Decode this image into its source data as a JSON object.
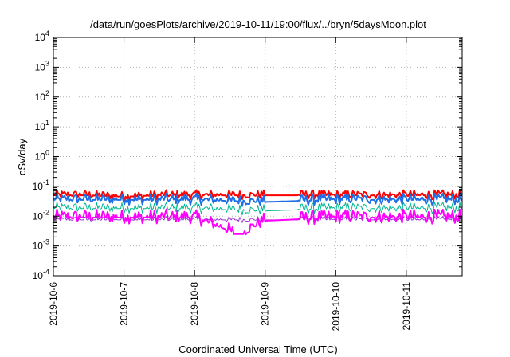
{
  "chart_data": {
    "type": "line",
    "title": "/data/run/goesPlots/archive/2019-10-11/19:00/flux/../bryn/5daysMoon.plot",
    "xlabel": "Coordinated Universal Time (UTC)",
    "ylabel": "cSv/day",
    "yscale": "log",
    "ylim": [
      0.0001,
      10000
    ],
    "xlim": [
      "2019-10-06T00:00",
      "2019-10-11T19:00"
    ],
    "x_ticks": [
      "2019-10-6",
      "2019-10-7",
      "2019-10-8",
      "2019-10-9",
      "2019-10-10",
      "2019-10-11"
    ],
    "y_ticks": [
      {
        "base": "10",
        "exp": "4"
      },
      {
        "base": "10",
        "exp": "3"
      },
      {
        "base": "10",
        "exp": "2"
      },
      {
        "base": "10",
        "exp": "1"
      },
      {
        "base": "10",
        "exp": "0"
      },
      {
        "base": "10",
        "exp": "-1"
      },
      {
        "base": "10",
        "exp": "-2"
      },
      {
        "base": "10",
        "exp": "-3"
      },
      {
        "base": "10",
        "exp": "-4"
      }
    ],
    "grid": true,
    "legend": "none",
    "gap": [
      "2019-10-09T00:00",
      "2019-10-09T10:00"
    ],
    "series": [
      {
        "color": "#ff0000",
        "baseline": 0.05,
        "gap_value": 0.05,
        "width": 2,
        "x": [
          "2019-10-06T00:00",
          "2019-10-06T12:00",
          "2019-10-07T00:00",
          "2019-10-07T12:00",
          "2019-10-08T00:00",
          "2019-10-08T12:00",
          "2019-10-09T00:00",
          "2019-10-09T12:00",
          "2019-10-10T00:00",
          "2019-10-10T12:00",
          "2019-10-11T00:00",
          "2019-10-11T12:00",
          "2019-10-11T19:00"
        ],
        "y": [
          0.05,
          0.05,
          0.045,
          0.05,
          0.05,
          0.05,
          0.05,
          0.05,
          0.05,
          0.05,
          0.05,
          0.05,
          0.05
        ]
      },
      {
        "color": "#9b30d0",
        "baseline": 0.0075,
        "gap_value": 0.0075,
        "width": 1,
        "x": [
          "2019-10-06T00:00",
          "2019-10-07T00:00",
          "2019-10-08T00:00",
          "2019-10-09T00:00",
          "2019-10-10T00:00",
          "2019-10-11T00:00",
          "2019-10-11T19:00"
        ],
        "y": [
          0.0075,
          0.0075,
          0.0075,
          0.0075,
          0.0075,
          0.0075,
          0.0075
        ]
      },
      {
        "color": "#00b890",
        "baseline": 0.018,
        "gap_value": 0.015,
        "width": 1,
        "x": [
          "2019-10-06T00:00",
          "2019-10-07T00:00",
          "2019-10-08T00:00",
          "2019-10-09T00:00",
          "2019-10-10T00:00",
          "2019-10-11T00:00",
          "2019-10-11T19:00"
        ],
        "y": [
          0.018,
          0.018,
          0.018,
          0.015,
          0.018,
          0.018,
          0.018
        ]
      },
      {
        "color": "#ff00ff",
        "baseline": 0.009,
        "gap_value": 0.007,
        "width": 2,
        "x": [
          "2019-10-06T00:00",
          "2019-10-07T00:00",
          "2019-10-08T00:00",
          "2019-10-08T15:00",
          "2019-10-09T00:00",
          "2019-10-10T00:00",
          "2019-10-11T00:00",
          "2019-10-11T19:00"
        ],
        "y": [
          0.009,
          0.009,
          0.009,
          0.0025,
          0.007,
          0.009,
          0.009,
          0.009
        ]
      },
      {
        "color": "#1e6fe6",
        "baseline": 0.035,
        "gap_value": 0.03,
        "width": 2,
        "x": [
          "2019-10-06T00:00",
          "2019-10-07T00:00",
          "2019-10-08T00:00",
          "2019-10-09T00:00",
          "2019-10-10T00:00",
          "2019-10-11T00:00",
          "2019-10-11T19:00"
        ],
        "y": [
          0.035,
          0.035,
          0.035,
          0.03,
          0.035,
          0.035,
          0.035
        ]
      }
    ]
  }
}
